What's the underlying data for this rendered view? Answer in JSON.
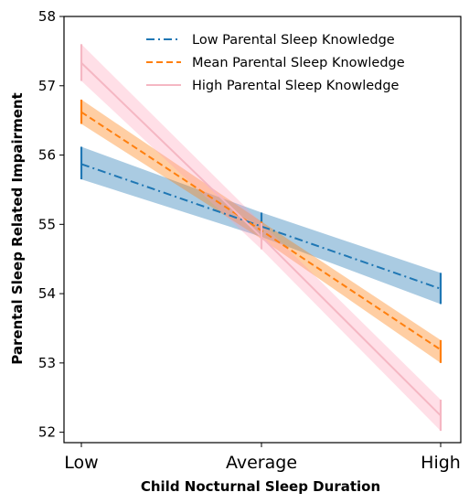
{
  "chart_data": {
    "type": "line",
    "title": "",
    "xlabel": "Child Nocturnal Sleep Duration",
    "ylabel": "Parental Sleep Related Impairment",
    "categories": [
      "Low",
      "Average",
      "High"
    ],
    "ylim": [
      51.85,
      58
    ],
    "yticks": [
      52,
      53,
      54,
      55,
      56,
      57,
      58
    ],
    "grid": false,
    "legend_position": "top-right",
    "series": [
      {
        "name": "Low Parental Sleep Knowledge",
        "color": "#1f77b4",
        "band_color": "#1f77b4",
        "dash": "dash-dot",
        "values": [
          55.87,
          54.97,
          54.07
        ],
        "lower": [
          55.65,
          54.82,
          53.85
        ],
        "upper": [
          56.12,
          55.17,
          54.3
        ]
      },
      {
        "name": "Mean Parental Sleep Knowledge",
        "color": "#ff7f0e",
        "band_color": "#ff7f0e",
        "dash": "dashed",
        "values": [
          56.62,
          54.91,
          53.19
        ],
        "lower": [
          56.45,
          54.79,
          53.0
        ],
        "upper": [
          56.8,
          55.04,
          53.33
        ]
      },
      {
        "name": "High Parental Sleep Knowledge",
        "color": "#f5b7c3",
        "band_color": "#ff9db5",
        "dash": "solid",
        "values": [
          57.33,
          54.82,
          52.24
        ],
        "lower": [
          57.07,
          54.64,
          52.02
        ],
        "upper": [
          57.6,
          55.02,
          52.47
        ]
      }
    ]
  }
}
